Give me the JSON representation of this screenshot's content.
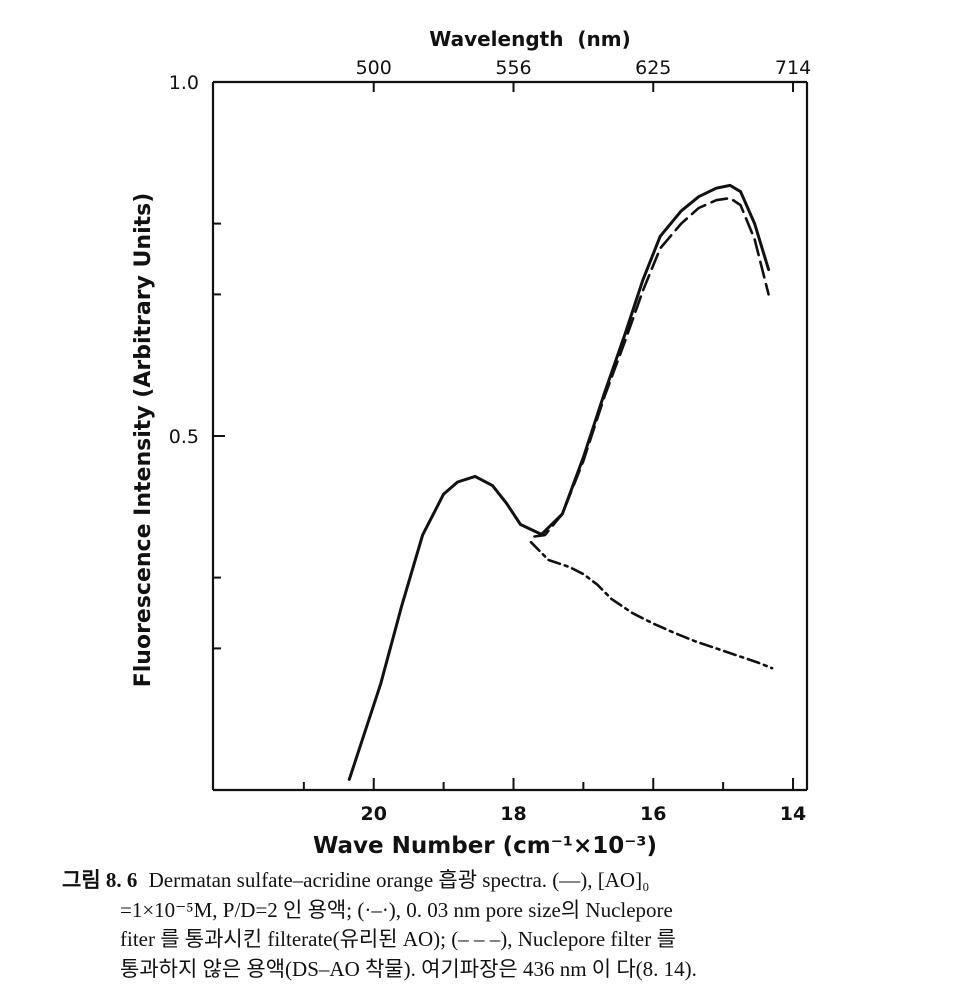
{
  "chart_data": {
    "type": "line",
    "title": "",
    "xlabel": "Wave Number (cm⁻¹×10⁻³)",
    "ylabel": "Fluorescence Intensity (Arbitrary Units)",
    "top_axis_label": "Wavelength  (nm)",
    "xlim": [
      22.3,
      13.8
    ],
    "ylim": [
      0.0,
      1.0
    ],
    "x_ticks": [
      20,
      18,
      16,
      14
    ],
    "x_tick_labels": [
      "20",
      "18",
      "16",
      "14"
    ],
    "y_ticks": [
      1.0,
      0.5
    ],
    "y_tick_labels": [
      "1.0",
      "0.5"
    ],
    "top_ticks": [
      20.0,
      18.0,
      16.0,
      14.0
    ],
    "top_tick_labels": [
      "500",
      "556",
      "625",
      "714"
    ],
    "grid": false,
    "series": [
      {
        "style": "solid",
        "x": [
          20.35,
          19.9,
          19.6,
          19.3,
          19.0,
          18.8,
          18.55,
          18.3,
          18.1,
          17.9,
          17.6,
          17.3,
          17.0,
          16.7,
          16.4,
          16.15,
          15.9,
          15.6,
          15.35,
          15.1,
          14.9,
          14.75,
          14.55,
          14.35
        ],
        "y": [
          0.015,
          0.15,
          0.26,
          0.36,
          0.418,
          0.435,
          0.443,
          0.43,
          0.405,
          0.375,
          0.361,
          0.39,
          0.47,
          0.56,
          0.645,
          0.72,
          0.782,
          0.818,
          0.838,
          0.85,
          0.854,
          0.845,
          0.8,
          0.735
        ]
      },
      {
        "style": "dashed",
        "x": [
          17.7,
          17.55,
          17.3,
          17.0,
          16.7,
          16.4,
          16.15,
          15.9,
          15.6,
          15.35,
          15.1,
          14.9,
          14.75,
          14.55,
          14.35
        ],
        "y": [
          0.358,
          0.36,
          0.39,
          0.465,
          0.555,
          0.635,
          0.705,
          0.765,
          0.8,
          0.822,
          0.833,
          0.836,
          0.826,
          0.778,
          0.7
        ]
      },
      {
        "style": "dashdot",
        "x": [
          17.75,
          17.5,
          17.2,
          17.0,
          16.8,
          16.6,
          16.3,
          16.0,
          15.7,
          15.4,
          15.1,
          14.8,
          14.5,
          14.3
        ],
        "y": [
          0.35,
          0.325,
          0.315,
          0.305,
          0.29,
          0.27,
          0.25,
          0.235,
          0.222,
          0.21,
          0.2,
          0.19,
          0.18,
          0.172
        ]
      }
    ]
  },
  "caption": {
    "fig_label": "그림 8. 6",
    "line1": "Dermatan sulfate–acridine orange 흡광 spectra.  (—),  [AO]₀",
    "line2": "=1×10⁻⁵M,  P/D=2 인  용액;  (·–·),  0. 03 nm  pore size의  Nuclepore",
    "line3": "fiter 를  통과시킨  filterate(유리된  AO);  (– – –),  Nuclepore  filter 를",
    "line4": "통과하지  않은  용액(DS–AO  착물).  여기파장은  436 nm 이 다(8. 14)."
  }
}
